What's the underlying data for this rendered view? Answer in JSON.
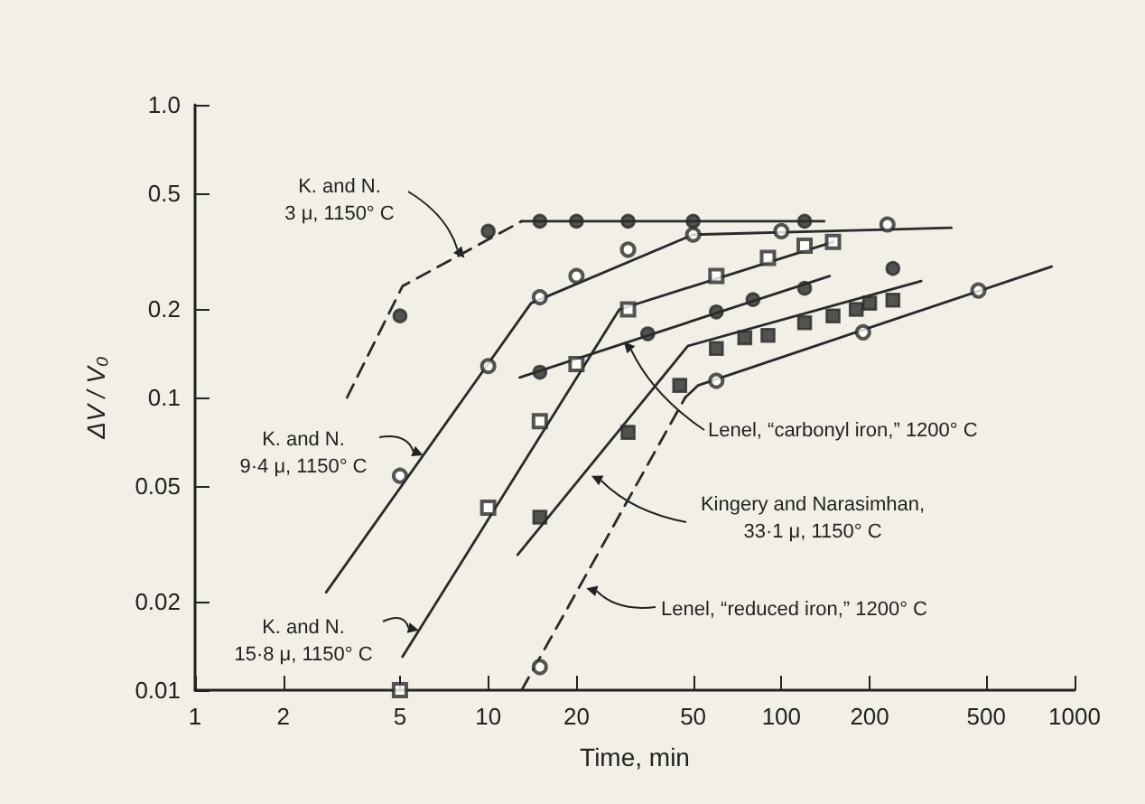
{
  "chart_data": {
    "type": "scatter",
    "xlabel": "Time, min",
    "ylabel": "ΔV / V₀",
    "log": "xy",
    "grid": false,
    "xlim": [
      1,
      1000
    ],
    "xticks": [
      1,
      2,
      5,
      10,
      20,
      50,
      100,
      200,
      500,
      1000
    ],
    "ylim": [
      0.01,
      1
    ],
    "yticks": [
      0.01,
      0.02,
      0.05,
      0.1,
      0.2,
      0.5,
      {
        "value": 1,
        "label": "1.0"
      }
    ],
    "series": [
      {
        "marker": "circle",
        "color": "#2a2a2a",
        "x": [
          5,
          10,
          15,
          20,
          30,
          50,
          120
        ],
        "values": [
          0.19,
          0.37,
          0.4,
          0.4,
          0.4,
          0.4,
          0.4
        ]
      },
      {
        "marker": "circle-open",
        "color": "#2a2a2a",
        "x": [
          5,
          10,
          15,
          20,
          30,
          50,
          100,
          230
        ],
        "values": [
          0.054,
          0.128,
          0.22,
          0.26,
          0.32,
          0.36,
          0.37,
          0.39
        ]
      },
      {
        "marker": "square-open",
        "color": "#2a2a2a",
        "x": [
          5,
          10,
          15,
          20,
          30,
          60,
          90,
          120,
          150
        ],
        "values": [
          0.01,
          0.042,
          0.083,
          0.13,
          0.2,
          0.26,
          0.3,
          0.33,
          0.34
        ]
      },
      {
        "marker": "circle",
        "color": "#2a2a2a",
        "x": [
          15,
          35,
          60,
          80,
          120,
          240
        ],
        "values": [
          0.122,
          0.165,
          0.196,
          0.216,
          0.236,
          0.276
        ]
      },
      {
        "marker": "square",
        "color": "#2a2a2a",
        "x": [
          15,
          30,
          45,
          60,
          75,
          90,
          120,
          150,
          180,
          200,
          240
        ],
        "values": [
          0.039,
          0.076,
          0.11,
          0.147,
          0.16,
          0.163,
          0.18,
          0.19,
          0.2,
          0.21,
          0.215
        ]
      },
      {
        "marker": "circle-open",
        "color": "#2a2a2a",
        "x": [
          15,
          60,
          190,
          470
        ],
        "values": [
          0.012,
          0.114,
          0.167,
          0.232
        ]
      },
      {
        "type": "line",
        "marker": "none",
        "line_style": "dashed",
        "color": "#2a2a2a",
        "x": [
          3.3,
          5.1,
          13
        ],
        "values": [
          0.1,
          0.24,
          0.4
        ]
      },
      {
        "type": "line",
        "marker": "none",
        "line_style": "solid",
        "color": "#2a2a2a",
        "x": [
          13,
          140
        ],
        "values": [
          0.4,
          0.4
        ]
      },
      {
        "type": "line",
        "marker": "none",
        "line_style": "solid",
        "color": "#2a2a2a",
        "x": [
          2.8,
          14,
          50,
          380
        ],
        "values": [
          0.0216,
          0.21,
          0.36,
          0.38
        ]
      },
      {
        "type": "line",
        "marker": "none",
        "line_style": "solid",
        "color": "#2a2a2a",
        "x": [
          5.1,
          28,
          150
        ],
        "values": [
          0.013,
          0.2,
          0.34
        ]
      },
      {
        "type": "line",
        "marker": "none",
        "line_style": "solid",
        "color": "#2a2a2a",
        "x": [
          12.8,
          146
        ],
        "values": [
          0.117,
          0.26
        ]
      },
      {
        "type": "line",
        "marker": "none",
        "line_style": "solid",
        "color": "#2a2a2a",
        "x": [
          12.6,
          48,
          300
        ],
        "values": [
          0.029,
          0.15,
          0.25
        ]
      },
      {
        "type": "line",
        "marker": "none",
        "line_style": "dashed",
        "color": "#2a2a2a",
        "x": [
          13,
          47
        ],
        "values": [
          0.01,
          0.1
        ]
      },
      {
        "type": "line",
        "marker": "none",
        "line_style": "solid",
        "color": "#2a2a2a",
        "x": [
          47,
          52,
          835
        ],
        "values": [
          0.1,
          0.11,
          0.28
        ]
      }
    ],
    "annotations": [
      {
        "text": "K. and N.\n3 μ, 1150° C",
        "x": 8.3,
        "y": 0.3
      },
      {
        "text": "K. and N.\n9·4 μ, 1150° C",
        "x": 6,
        "y": 0.0635
      },
      {
        "text": "K. and N.\n15·8 μ, 1150° C",
        "x": 5.8,
        "y": 0.016
      },
      {
        "text": "Lenel, “carbonyl iron,” 1200° C",
        "x": 29,
        "y": 0.155
      },
      {
        "text": "Kingery and Narasimhan,\n33·1 μ, 1150° C",
        "x": 22.5,
        "y": 0.054
      },
      {
        "text": "Lenel, “reduced iron,” 1200° C",
        "x": 21.6,
        "y": 0.0223
      }
    ]
  }
}
